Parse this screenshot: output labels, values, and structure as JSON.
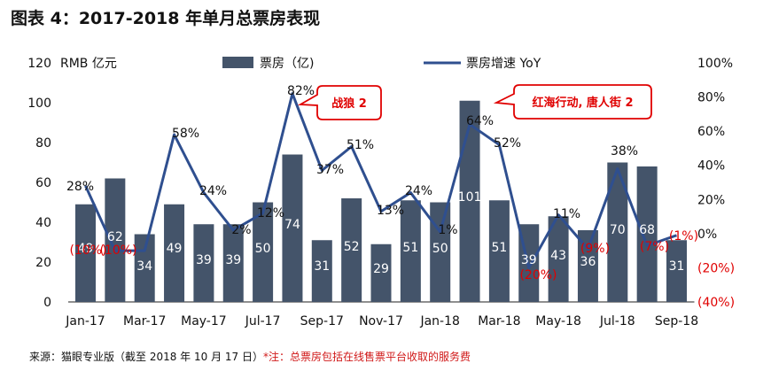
{
  "figure_title": "图表 4：2017-2018 年单月总票房表现",
  "source": {
    "text": "来源：猫眼专业版（截至 2018 年 10 月 17 日）",
    "note": "*注：总票房包括在线售票平台收取的服务费"
  },
  "colors": {
    "bar": "#44546A",
    "line": "#2F4F8F",
    "negative_label": "#E00000",
    "callout_border": "#E00000",
    "callout_text": "#E00000"
  },
  "chart_data": {
    "type": "bar",
    "categories": [
      "Jan-17",
      "Feb-17",
      "Mar-17",
      "Apr-17",
      "May-17",
      "Jun-17",
      "Jul-17",
      "Aug-17",
      "Sep-17",
      "Oct-17",
      "Nov-17",
      "Dec-17",
      "Jan-18",
      "Feb-18",
      "Mar-18",
      "Apr-18",
      "May-18",
      "Jun-18",
      "Jul-18",
      "Aug-18",
      "Sep-18"
    ],
    "x_tick_labels": [
      "Jan-17",
      "Mar-17",
      "May-17",
      "Jul-17",
      "Sep-17",
      "Nov-17",
      "Jan-18",
      "Mar-18",
      "May-18",
      "Jul-18",
      "Sep-18"
    ],
    "series": [
      {
        "name": "票房（亿)",
        "type": "bar",
        "axis": "left",
        "values": [
          49,
          62,
          34,
          49,
          39,
          39,
          50,
          74,
          31,
          52,
          29,
          51,
          50,
          101,
          51,
          39,
          43,
          36,
          70,
          68,
          31
        ]
      },
      {
        "name": "票房增速 YoY",
        "type": "line",
        "axis": "right",
        "values": [
          28,
          -10,
          -10,
          58,
          24,
          2,
          12,
          82,
          37,
          51,
          13,
          24,
          1,
          64,
          52,
          -20,
          11,
          -9,
          38,
          -7,
          -1
        ]
      }
    ],
    "bar_labels": [
      "49",
      "62",
      "34",
      "49",
      "39",
      "39",
      "50",
      "74",
      "31",
      "52",
      "29",
      "51",
      "50",
      "101",
      "51",
      "39",
      "43",
      "36",
      "70",
      "68",
      "31"
    ],
    "line_labels": [
      "28%",
      "(10%)",
      "(10%)",
      "58%",
      "24%",
      "2%",
      "12%",
      "82%",
      "37%",
      "51%",
      "13%",
      "24%",
      "1%",
      "64%",
      "52%",
      "(20%)",
      "11%",
      "(9%)",
      "38%",
      "(7%)",
      "(1%)"
    ],
    "left_axis": {
      "label": "RMB 亿元",
      "ylim": [
        0,
        120
      ],
      "ticks": [
        "0",
        "20",
        "40",
        "60",
        "80",
        "100",
        "120"
      ]
    },
    "right_axis": {
      "ylim": [
        -40,
        100
      ],
      "ticks": [
        "(40%)",
        "(20%)",
        "0%",
        "20%",
        "40%",
        "60%",
        "80%",
        "100%"
      ]
    },
    "legend_placement": "top-center",
    "grid": false,
    "annotations": [
      {
        "text": "战狼 2",
        "category": "Aug-17"
      },
      {
        "text": "红海行动, 唐人街 2",
        "category": "Feb-18"
      }
    ]
  }
}
